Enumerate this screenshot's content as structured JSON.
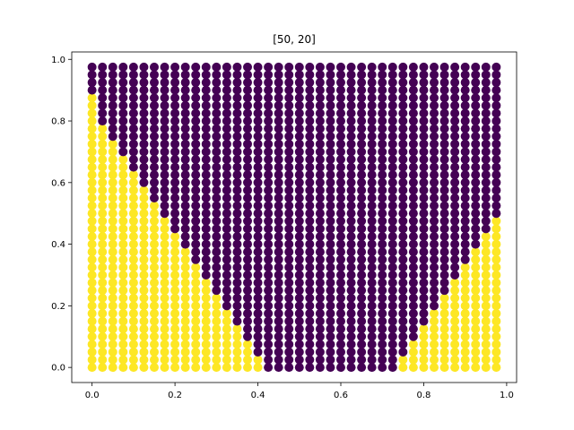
{
  "chart_data": {
    "type": "scatter",
    "title": "[50, 20]",
    "xlabel": "",
    "ylabel": "",
    "xlim": [
      -0.049,
      1.024
    ],
    "ylim": [
      -0.049,
      1.024
    ],
    "xticks": [
      0.0,
      0.2,
      0.4,
      0.6,
      0.8,
      1.0
    ],
    "yticks": [
      0.0,
      0.2,
      0.4,
      0.6,
      0.8,
      1.0
    ],
    "xtick_labels": [
      "0.0",
      "0.2",
      "0.4",
      "0.6",
      "0.8",
      "1.0"
    ],
    "ytick_labels": [
      "0.0",
      "0.2",
      "0.4",
      "0.6",
      "0.8",
      "1.0"
    ],
    "grid": false,
    "grid_points": {
      "x_start": 0.0,
      "x_step": 0.025,
      "x_count": 40,
      "y_start": 0.0,
      "y_step": 0.025,
      "y_count": 40
    },
    "classes": [
      {
        "label": 0,
        "color": "#440154"
      },
      {
        "label": 1,
        "color": "#fde725"
      }
    ],
    "class_1_max_y_per_column": [
      0.875,
      0.775,
      0.725,
      0.675,
      0.625,
      0.575,
      0.525,
      0.475,
      0.425,
      0.375,
      0.325,
      0.275,
      0.225,
      0.175,
      0.125,
      0.075,
      0.025,
      -1,
      -1,
      -1,
      -1,
      -1,
      -1,
      -1,
      -1,
      -1,
      -1,
      -1,
      -1,
      -1,
      0.025,
      0.075,
      0.125,
      0.175,
      0.225,
      0.275,
      0.325,
      0.375,
      0.425,
      0.475
    ]
  }
}
